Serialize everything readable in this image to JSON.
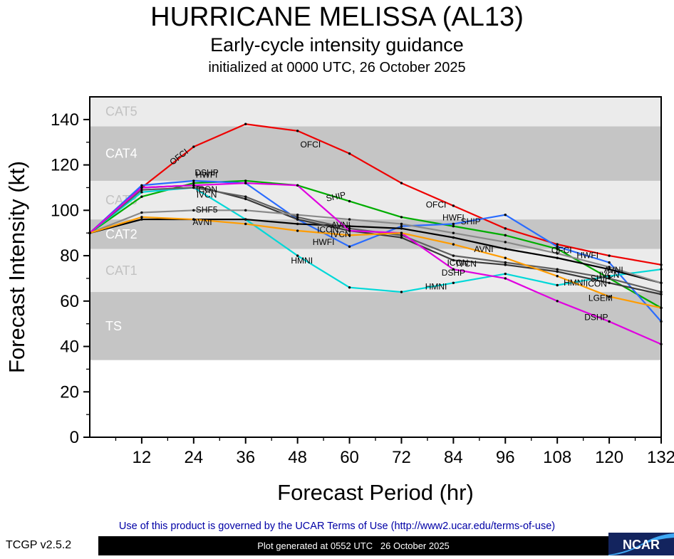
{
  "footer": {
    "terms": "Use of this product is governed by the UCAR Terms of Use (http://www2.ucar.edu/terms-of-use)",
    "version": "TCGP v2.5.2",
    "generated": "Plot generated at 0552 UTC   26 October 2025",
    "logo_text": "NCAR"
  },
  "chart_data": {
    "type": "line",
    "title": "HURRICANE MELISSA (AL13)",
    "subtitle": "Early-cycle intensity guidance",
    "init_line": "initialized at 0000 UTC, 26 October 2025",
    "xlabel": "Forecast Period (hr)",
    "ylabel": "Forecast Intensity (kt)",
    "xlim": [
      0,
      132
    ],
    "ylim": [
      0,
      150
    ],
    "xticks": [
      12,
      24,
      36,
      48,
      60,
      72,
      84,
      96,
      108,
      120,
      132
    ],
    "xminor": [
      6,
      18,
      30,
      42,
      54,
      66,
      78,
      90,
      102,
      114,
      126
    ],
    "yticks": [
      0,
      20,
      40,
      60,
      80,
      100,
      120,
      140
    ],
    "yminor": [
      10,
      30,
      50,
      70,
      90,
      110,
      130
    ],
    "grid": false,
    "legend": "inline-labels",
    "band_colors": {
      "light": "#ebebeb",
      "dark": "#c5c5c5"
    },
    "band_label_colors": {
      "light": "#c2c2c2",
      "dark": "#ffffff"
    },
    "bands": [
      {
        "label": "TS",
        "from": 34,
        "to": 64,
        "shade": "dark"
      },
      {
        "label": "CAT1",
        "from": 64,
        "to": 83,
        "shade": "light"
      },
      {
        "label": "CAT2",
        "from": 83,
        "to": 96,
        "shade": "dark"
      },
      {
        "label": "CAT3",
        "from": 96,
        "to": 113,
        "shade": "light"
      },
      {
        "label": "CAT4",
        "from": 113,
        "to": 137,
        "shade": "dark"
      },
      {
        "label": "CAT5",
        "from": 137,
        "to": 150,
        "shade": "light"
      }
    ],
    "x": [
      0,
      12,
      24,
      36,
      48,
      60,
      72,
      84,
      96,
      108,
      120,
      132
    ],
    "series": [
      {
        "name": "OFCI",
        "color": "#ee0000",
        "values": [
          90,
          110,
          128,
          138,
          135,
          125,
          112,
          102,
          92,
          85,
          80,
          76
        ],
        "labels": [
          {
            "h": 21,
            "dy": 0,
            "rot": -38
          },
          {
            "h": 51,
            "dy": 12
          },
          {
            "h": 80,
            "dy": 10
          },
          {
            "h": 109,
            "dy": 8
          }
        ]
      },
      {
        "name": "SHIP",
        "color": "#00ad00",
        "values": [
          90,
          106,
          112,
          113,
          111,
          104,
          97,
          93,
          89,
          83,
          70,
          57
        ],
        "labels": [
          {
            "h": 57,
            "dy": 0,
            "rot": -12
          },
          {
            "h": 88,
            "dy": -10
          },
          {
            "h": 118,
            "dy": 8
          }
        ]
      },
      {
        "name": "HWFI",
        "color": "#2a6cff",
        "values": [
          90,
          111,
          113,
          112,
          96,
          84,
          93,
          94,
          98,
          84,
          77,
          51
        ],
        "labels": [
          {
            "h": 27,
            "dy": -8
          },
          {
            "h": 54,
            "dy": 14
          },
          {
            "h": 84,
            "dy": -8
          },
          {
            "h": 115,
            "dy": 0
          }
        ]
      },
      {
        "name": "HMNI",
        "color": "#00d8d8",
        "values": [
          90,
          108,
          110,
          96,
          80,
          66,
          64,
          68,
          72,
          67,
          71,
          74
        ],
        "labels": [
          {
            "h": 49,
            "dy": 4
          },
          {
            "h": 80,
            "dy": 2
          },
          {
            "h": 112,
            "dy": 2
          }
        ]
      },
      {
        "name": "AVNI",
        "color": "#000000",
        "values": [
          90,
          96,
          96,
          96,
          94,
          93,
          92,
          88,
          83,
          79,
          74,
          68
        ],
        "labels": [
          {
            "h": 26,
            "dy": 5
          },
          {
            "h": 58,
            "dy": 0
          },
          {
            "h": 91,
            "dy": 8
          },
          {
            "h": 121,
            "dy": 0
          }
        ]
      },
      {
        "name": "ICON",
        "color": "#3a3a3a",
        "values": [
          90,
          110,
          111,
          105,
          96,
          91,
          88,
          78,
          76,
          73,
          68,
          63
        ],
        "labels": [
          {
            "h": 27,
            "dy": 2
          },
          {
            "h": 55,
            "dy": 6
          },
          {
            "h": 85,
            "dy": 4
          },
          {
            "h": 117,
            "dy": 6
          }
        ]
      },
      {
        "name": "IVCN",
        "color": "#5f5f5f",
        "values": [
          90,
          109,
          110,
          106,
          97,
          92,
          89,
          80,
          77,
          74,
          70,
          64
        ],
        "labels": [
          {
            "h": 27,
            "dy": 8
          },
          {
            "h": 58,
            "dy": 12
          },
          {
            "h": 87,
            "dy": 10
          },
          {
            "h": 120,
            "dy": -4
          }
        ]
      },
      {
        "name": "SHF5",
        "color": "#8a8a8a",
        "values": [
          90,
          99,
          100,
          100,
          98,
          96,
          94,
          90,
          86,
          81,
          75,
          68
        ],
        "labels": [
          {
            "h": 27,
            "dy": 0
          }
        ]
      },
      {
        "name": "DSHP",
        "color": "#e000e0",
        "values": [
          90,
          110,
          111,
          112,
          111,
          91,
          90,
          74,
          70,
          60,
          51,
          41
        ],
        "labels": [
          {
            "h": 27,
            "dy": -16
          },
          {
            "h": 84,
            "dy": 6
          },
          {
            "h": 117,
            "dy": 2
          }
        ]
      },
      {
        "name": "LGEM",
        "color": "#ff9c00",
        "values": [
          90,
          97,
          96,
          94,
          91,
          89,
          90,
          85,
          79,
          71,
          62,
          57
        ],
        "labels": [
          {
            "h": 118,
            "dy": 8
          }
        ]
      }
    ]
  }
}
